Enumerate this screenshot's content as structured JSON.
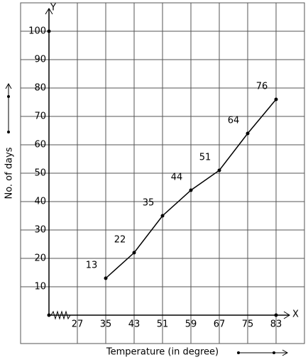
{
  "chart_data": {
    "type": "line",
    "x_label": "Temperature (in degree)",
    "y_label": "No. of days",
    "x_axis_name": "X",
    "y_axis_name": "Y",
    "x": [
      35,
      43,
      51,
      59,
      67,
      75,
      83
    ],
    "values": [
      13,
      22,
      35,
      44,
      51,
      64,
      76
    ],
    "color": "#000000",
    "xlim": [
      19,
      83
    ],
    "xticks": [
      27,
      35,
      43,
      51,
      59,
      67,
      75,
      83
    ],
    "ylim": [
      0,
      100
    ],
    "yticks": [
      10,
      20,
      30,
      40,
      50,
      60,
      70,
      80,
      90,
      100
    ],
    "grid": true
  }
}
